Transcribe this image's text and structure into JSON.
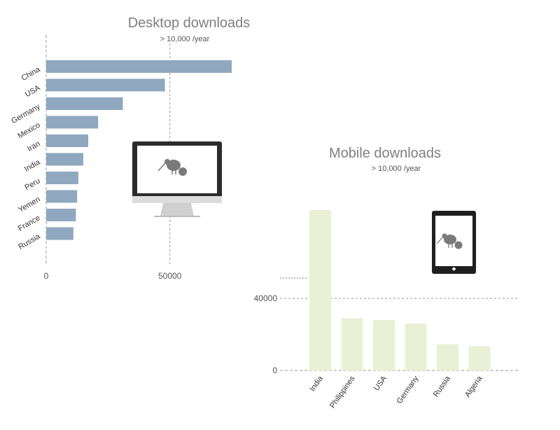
{
  "chart_data": [
    {
      "type": "bar",
      "orientation": "horizontal",
      "title": "Desktop downloads",
      "subtitle": "> 10,000 /year",
      "categories": [
        "China",
        "USA",
        "Germany",
        "Mexico",
        "Iran",
        "India",
        "Peru",
        "Yemen",
        "France",
        "Russia"
      ],
      "values": [
        75000,
        48000,
        31000,
        21000,
        17000,
        15000,
        13000,
        12500,
        12000,
        11000
      ],
      "x_ticks": [
        "0",
        "50000"
      ],
      "xlim": [
        0,
        75000
      ],
      "reference_line": 50000,
      "bar_color": "#8fa8bf",
      "icon": "desktop-monitor-kiwi-icon"
    },
    {
      "type": "bar",
      "orientation": "vertical",
      "title": "Mobile downloads",
      "subtitle": "> 10,000 /year",
      "categories": [
        "India",
        "Philippines",
        "USA",
        "Germany",
        "Russia",
        "Algeria"
      ],
      "values": [
        89000,
        29000,
        28000,
        26000,
        14500,
        13500
      ],
      "y_ticks": [
        "0",
        "40000"
      ],
      "ylim": [
        0,
        89000
      ],
      "reference_line": 40000,
      "bar_color": "#eaf0d6",
      "icon": "tablet-kiwi-icon"
    }
  ]
}
